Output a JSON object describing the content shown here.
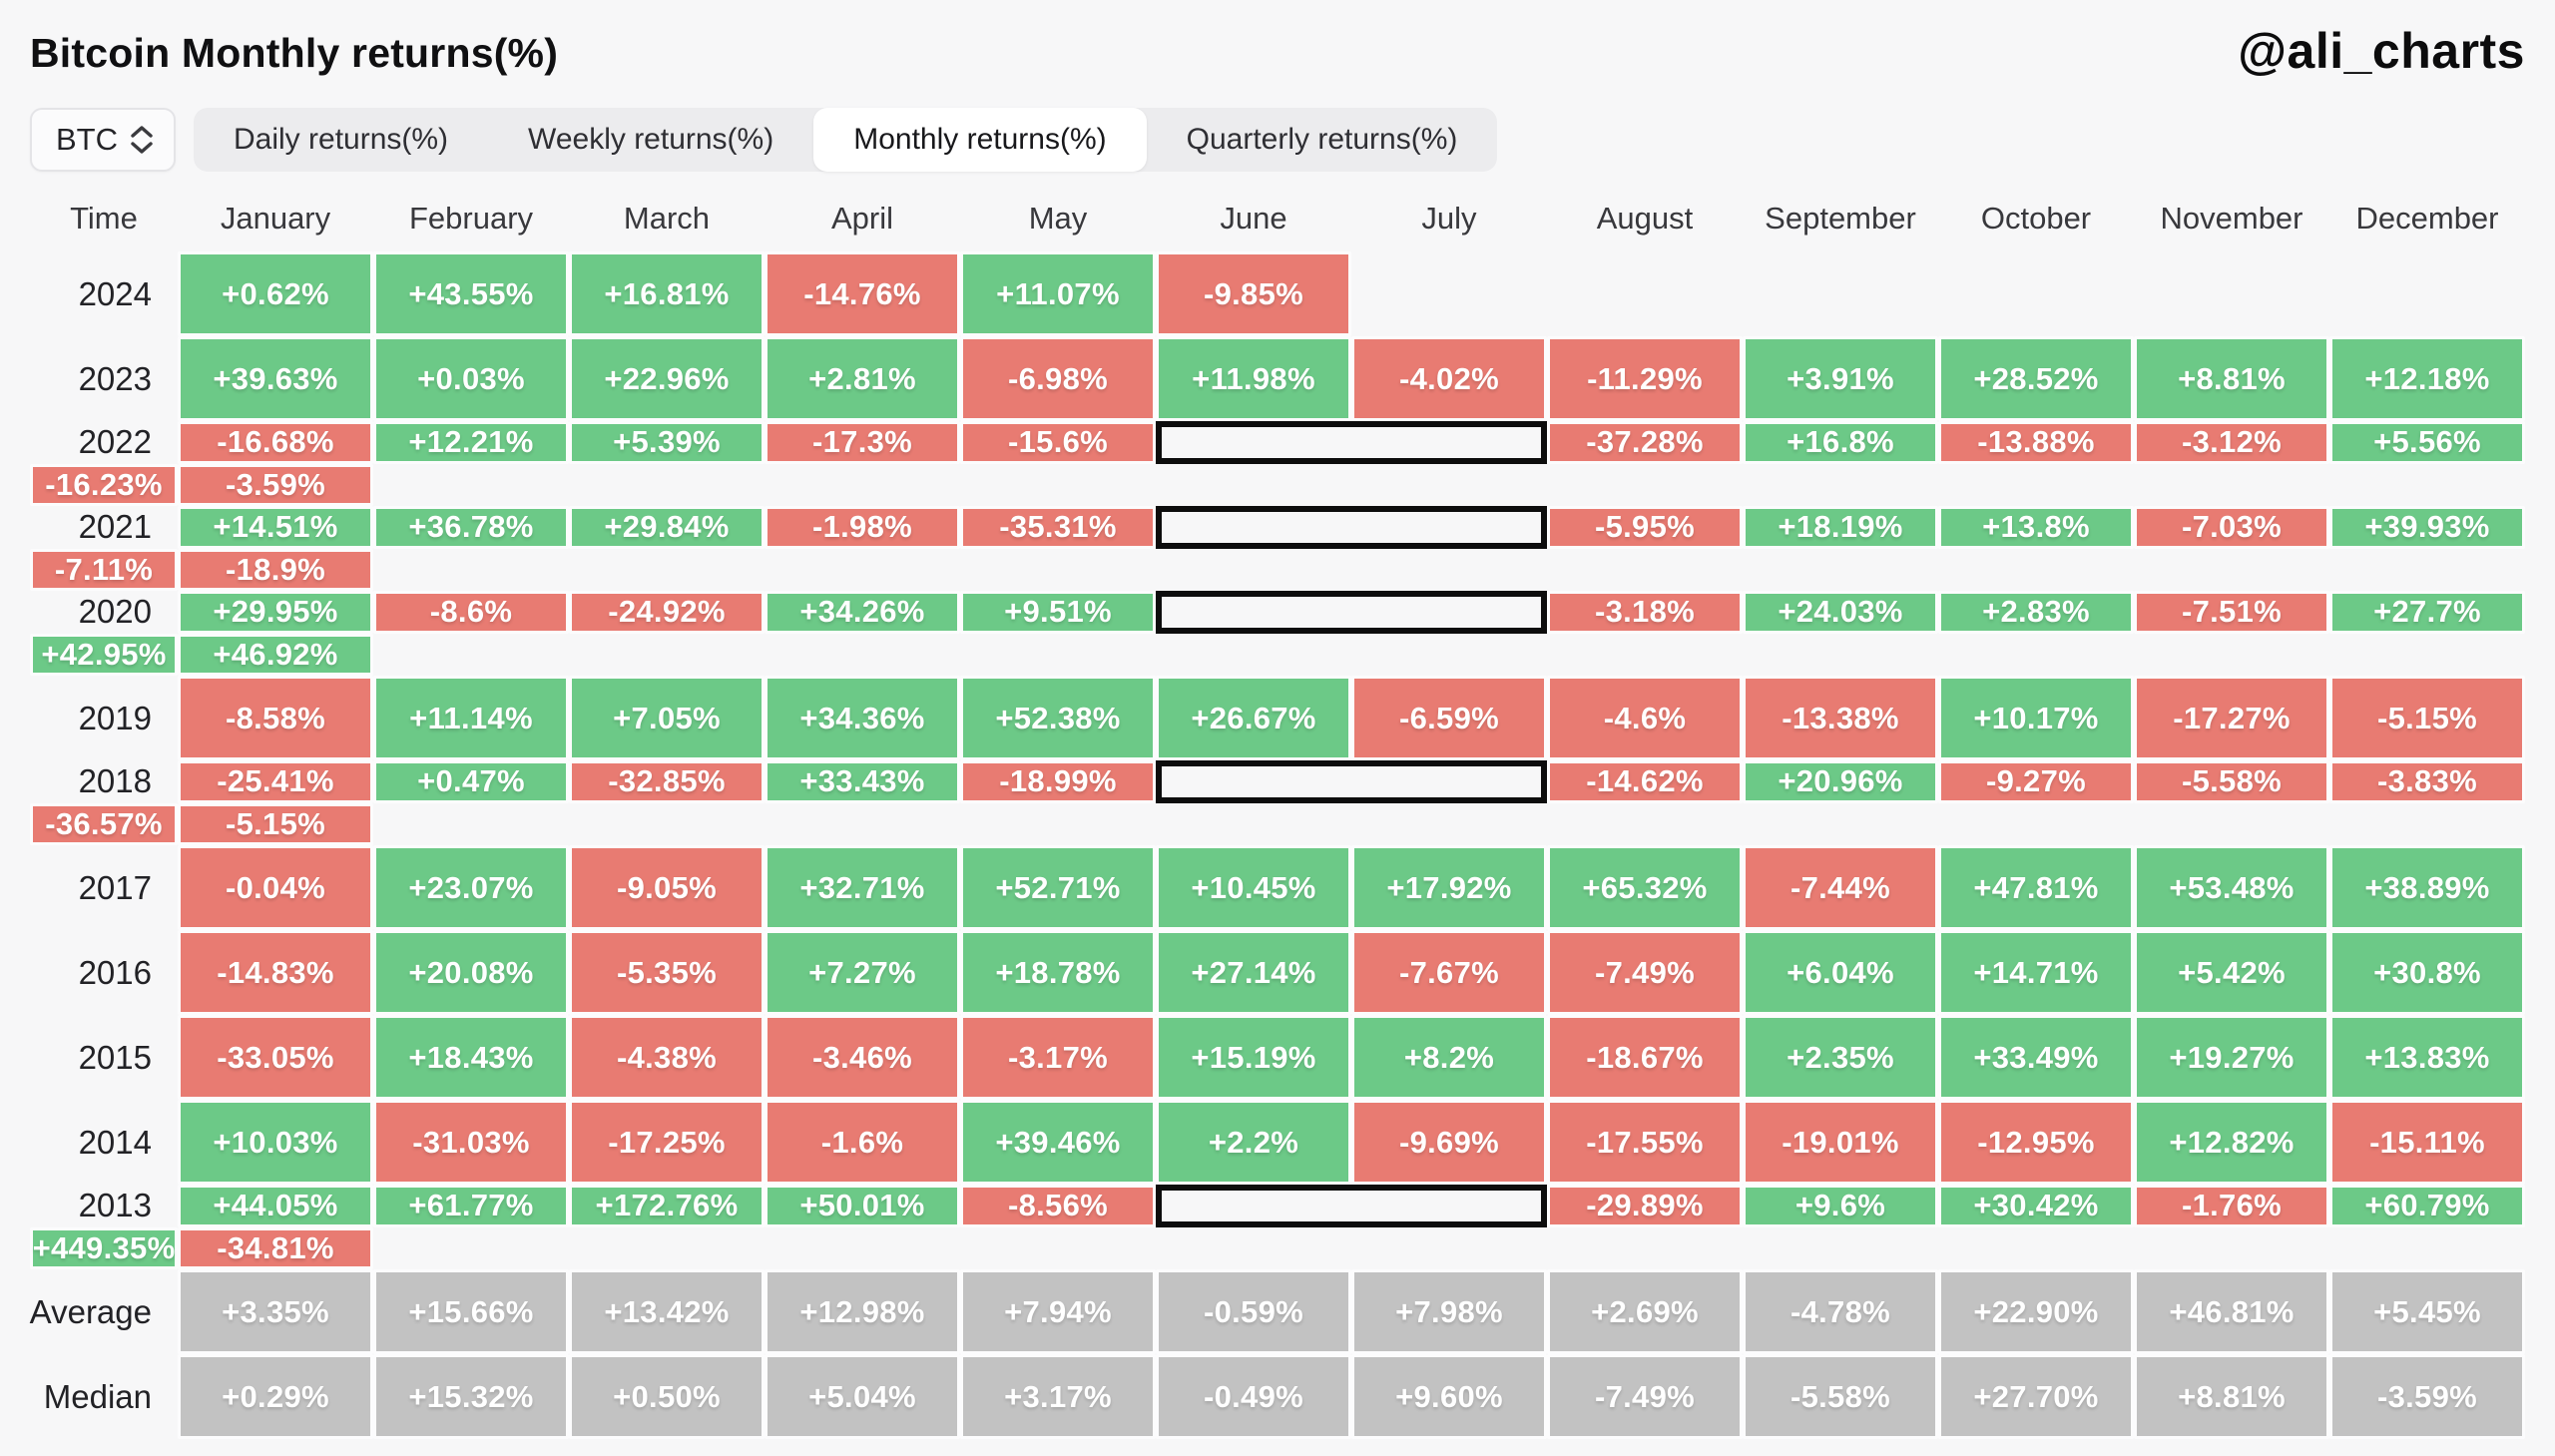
{
  "header": {
    "title": "Bitcoin Monthly returns(%)",
    "watermark": "@ali_charts"
  },
  "controls": {
    "asset_selector": {
      "value": "BTC",
      "icon": "up-down-chevrons"
    },
    "tabs": [
      {
        "label": "Daily returns(%)",
        "active": false
      },
      {
        "label": "Weekly returns(%)",
        "active": false
      },
      {
        "label": "Monthly returns(%)",
        "active": true
      },
      {
        "label": "Quarterly returns(%)",
        "active": false
      }
    ]
  },
  "chart_data": {
    "type": "heatmap",
    "title": "Bitcoin Monthly returns(%)",
    "row_header": "Time",
    "columns": [
      "January",
      "February",
      "March",
      "April",
      "May",
      "June",
      "July",
      "August",
      "September",
      "October",
      "November",
      "December"
    ],
    "rows": [
      {
        "label": "2024",
        "values": [
          "+0.62%",
          "+43.55%",
          "+16.81%",
          "-14.76%",
          "+11.07%",
          "-9.85%",
          null,
          null,
          null,
          null,
          null,
          null
        ],
        "summary": false,
        "boxed_june_july": false
      },
      {
        "label": "2023",
        "values": [
          "+39.63%",
          "+0.03%",
          "+22.96%",
          "+2.81%",
          "-6.98%",
          "+11.98%",
          "-4.02%",
          "-11.29%",
          "+3.91%",
          "+28.52%",
          "+8.81%",
          "+12.18%"
        ],
        "summary": false,
        "boxed_june_july": false
      },
      {
        "label": "2022",
        "values": [
          "-16.68%",
          "+12.21%",
          "+5.39%",
          "-17.3%",
          "-15.6%",
          "-37.28%",
          "+16.8%",
          "-13.88%",
          "-3.12%",
          "+5.56%",
          "-16.23%",
          "-3.59%"
        ],
        "summary": false,
        "boxed_june_july": true
      },
      {
        "label": "2021",
        "values": [
          "+14.51%",
          "+36.78%",
          "+29.84%",
          "-1.98%",
          "-35.31%",
          "-5.95%",
          "+18.19%",
          "+13.8%",
          "-7.03%",
          "+39.93%",
          "-7.11%",
          "-18.9%"
        ],
        "summary": false,
        "boxed_june_july": true
      },
      {
        "label": "2020",
        "values": [
          "+29.95%",
          "-8.6%",
          "-24.92%",
          "+34.26%",
          "+9.51%",
          "-3.18%",
          "+24.03%",
          "+2.83%",
          "-7.51%",
          "+27.7%",
          "+42.95%",
          "+46.92%"
        ],
        "summary": false,
        "boxed_june_july": true
      },
      {
        "label": "2019",
        "values": [
          "-8.58%",
          "+11.14%",
          "+7.05%",
          "+34.36%",
          "+52.38%",
          "+26.67%",
          "-6.59%",
          "-4.6%",
          "-13.38%",
          "+10.17%",
          "-17.27%",
          "-5.15%"
        ],
        "summary": false,
        "boxed_june_july": false
      },
      {
        "label": "2018",
        "values": [
          "-25.41%",
          "+0.47%",
          "-32.85%",
          "+33.43%",
          "-18.99%",
          "-14.62%",
          "+20.96%",
          "-9.27%",
          "-5.58%",
          "-3.83%",
          "-36.57%",
          "-5.15%"
        ],
        "summary": false,
        "boxed_june_july": true
      },
      {
        "label": "2017",
        "values": [
          "-0.04%",
          "+23.07%",
          "-9.05%",
          "+32.71%",
          "+52.71%",
          "+10.45%",
          "+17.92%",
          "+65.32%",
          "-7.44%",
          "+47.81%",
          "+53.48%",
          "+38.89%"
        ],
        "summary": false,
        "boxed_june_july": false
      },
      {
        "label": "2016",
        "values": [
          "-14.83%",
          "+20.08%",
          "-5.35%",
          "+7.27%",
          "+18.78%",
          "+27.14%",
          "-7.67%",
          "-7.49%",
          "+6.04%",
          "+14.71%",
          "+5.42%",
          "+30.8%"
        ],
        "summary": false,
        "boxed_june_july": false
      },
      {
        "label": "2015",
        "values": [
          "-33.05%",
          "+18.43%",
          "-4.38%",
          "-3.46%",
          "-3.17%",
          "+15.19%",
          "+8.2%",
          "-18.67%",
          "+2.35%",
          "+33.49%",
          "+19.27%",
          "+13.83%"
        ],
        "summary": false,
        "boxed_june_july": false
      },
      {
        "label": "2014",
        "values": [
          "+10.03%",
          "-31.03%",
          "-17.25%",
          "-1.6%",
          "+39.46%",
          "+2.2%",
          "-9.69%",
          "-17.55%",
          "-19.01%",
          "-12.95%",
          "+12.82%",
          "-15.11%"
        ],
        "summary": false,
        "boxed_june_july": false
      },
      {
        "label": "2013",
        "values": [
          "+44.05%",
          "+61.77%",
          "+172.76%",
          "+50.01%",
          "-8.56%",
          "-29.89%",
          "+9.6%",
          "+30.42%",
          "-1.76%",
          "+60.79%",
          "+449.35%",
          "-34.81%"
        ],
        "summary": false,
        "boxed_june_july": true
      },
      {
        "label": "Average",
        "values": [
          "+3.35%",
          "+15.66%",
          "+13.42%",
          "+12.98%",
          "+7.94%",
          "-0.59%",
          "+7.98%",
          "+2.69%",
          "-4.78%",
          "+22.90%",
          "+46.81%",
          "+5.45%"
        ],
        "summary": true,
        "boxed_june_july": false
      },
      {
        "label": "Median",
        "values": [
          "+0.29%",
          "+15.32%",
          "+0.50%",
          "+5.04%",
          "+3.17%",
          "-0.49%",
          "+9.60%",
          "-7.49%",
          "-5.58%",
          "+27.70%",
          "+8.81%",
          "-3.59%"
        ],
        "summary": true,
        "boxed_june_july": false
      }
    ],
    "boxed_pair_columns": [
      "June",
      "July"
    ],
    "colors": {
      "positive": "#6cc987",
      "negative": "#e87b72",
      "summary": "#c2c2c2",
      "highlight_border": "#0d0d0d"
    },
    "legend": "green = positive month, red = negative month, gray = summary rows, black outline = June/July pairs"
  }
}
